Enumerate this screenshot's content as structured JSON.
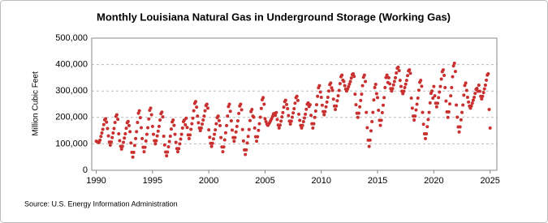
{
  "chart_data": {
    "type": "scatter",
    "title": "Monthly Louisiana Natural Gas in Underground Storage (Working Gas)",
    "y_label": "Million Cubic Feet",
    "source": "Source: U.S. Energy Information Administration",
    "color": "#c8312f",
    "grid": true,
    "xlim": [
      1989.6,
      2025.6
    ],
    "xticks": [
      1990,
      1995,
      2000,
      2005,
      2010,
      2015,
      2020,
      2025
    ],
    "ylim": [
      0,
      500000
    ],
    "yticks": [
      {
        "value": 0,
        "label": "0"
      },
      {
        "value": 100000,
        "label": "100,000"
      },
      {
        "value": 200000,
        "label": "200,000"
      },
      {
        "value": 300000,
        "label": "300,000"
      },
      {
        "value": 400000,
        "label": "400,000"
      },
      {
        "value": 500000,
        "label": "500,000"
      }
    ],
    "x": [
      1990,
      1990.083,
      1990.167,
      1990.25,
      1990.333,
      1990.417,
      1990.5,
      1990.583,
      1990.667,
      1990.75,
      1990.833,
      1990.917,
      1991,
      1991.083,
      1991.167,
      1991.25,
      1991.333,
      1991.417,
      1991.5,
      1991.583,
      1991.667,
      1991.75,
      1991.833,
      1991.917,
      1992,
      1992.083,
      1992.167,
      1992.25,
      1992.333,
      1992.417,
      1992.5,
      1992.583,
      1992.667,
      1992.75,
      1992.833,
      1992.917,
      1993,
      1993.083,
      1993.167,
      1993.25,
      1993.333,
      1993.417,
      1993.5,
      1993.583,
      1993.667,
      1993.75,
      1993.833,
      1993.917,
      1994,
      1994.083,
      1994.167,
      1994.25,
      1994.333,
      1994.417,
      1994.5,
      1994.583,
      1994.667,
      1994.75,
      1994.833,
      1994.917,
      1995,
      1995.083,
      1995.167,
      1995.25,
      1995.333,
      1995.417,
      1995.5,
      1995.583,
      1995.667,
      1995.75,
      1995.833,
      1995.917,
      1996,
      1996.083,
      1996.167,
      1996.25,
      1996.333,
      1996.417,
      1996.5,
      1996.583,
      1996.667,
      1996.75,
      1996.833,
      1996.917,
      1997,
      1997.083,
      1997.167,
      1997.25,
      1997.333,
      1997.417,
      1997.5,
      1997.583,
      1997.667,
      1997.75,
      1997.833,
      1997.917,
      1998,
      1998.083,
      1998.167,
      1998.25,
      1998.333,
      1998.417,
      1998.5,
      1998.583,
      1998.667,
      1998.75,
      1998.833,
      1998.917,
      1999,
      1999.083,
      1999.167,
      1999.25,
      1999.333,
      1999.417,
      1999.5,
      1999.583,
      1999.667,
      1999.75,
      1999.833,
      1999.917,
      2000,
      2000.083,
      2000.167,
      2000.25,
      2000.333,
      2000.417,
      2000.5,
      2000.583,
      2000.667,
      2000.75,
      2000.833,
      2000.917,
      2001,
      2001.083,
      2001.167,
      2001.25,
      2001.333,
      2001.417,
      2001.5,
      2001.583,
      2001.667,
      2001.75,
      2001.833,
      2001.917,
      2002,
      2002.083,
      2002.167,
      2002.25,
      2002.333,
      2002.417,
      2002.5,
      2002.583,
      2002.667,
      2002.75,
      2002.833,
      2002.917,
      2003,
      2003.083,
      2003.167,
      2003.25,
      2003.333,
      2003.417,
      2003.5,
      2003.583,
      2003.667,
      2003.75,
      2003.833,
      2003.917,
      2004,
      2004.083,
      2004.167,
      2004.25,
      2004.333,
      2004.417,
      2004.5,
      2004.583,
      2004.667,
      2004.75,
      2004.833,
      2004.917,
      2005,
      2005.083,
      2005.167,
      2005.25,
      2005.333,
      2005.417,
      2005.5,
      2005.583,
      2005.667,
      2005.75,
      2005.833,
      2005.917,
      2006,
      2006.083,
      2006.167,
      2006.25,
      2006.333,
      2006.417,
      2006.5,
      2006.583,
      2006.667,
      2006.75,
      2006.833,
      2006.917,
      2007,
      2007.083,
      2007.167,
      2007.25,
      2007.333,
      2007.417,
      2007.5,
      2007.583,
      2007.667,
      2007.75,
      2007.833,
      2007.917,
      2008,
      2008.083,
      2008.167,
      2008.25,
      2008.333,
      2008.417,
      2008.5,
      2008.583,
      2008.667,
      2008.75,
      2008.833,
      2008.917,
      2009,
      2009.083,
      2009.167,
      2009.25,
      2009.333,
      2009.417,
      2009.5,
      2009.583,
      2009.667,
      2009.75,
      2009.833,
      2009.917,
      2010,
      2010.083,
      2010.167,
      2010.25,
      2010.333,
      2010.417,
      2010.5,
      2010.583,
      2010.667,
      2010.75,
      2010.833,
      2010.917,
      2011,
      2011.083,
      2011.167,
      2011.25,
      2011.333,
      2011.417,
      2011.5,
      2011.583,
      2011.667,
      2011.75,
      2011.833,
      2011.917,
      2012,
      2012.083,
      2012.167,
      2012.25,
      2012.333,
      2012.417,
      2012.5,
      2012.583,
      2012.667,
      2012.75,
      2012.833,
      2012.917,
      2013,
      2013.083,
      2013.167,
      2013.25,
      2013.333,
      2013.417,
      2013.5,
      2013.583,
      2013.667,
      2013.75,
      2013.833,
      2013.917,
      2014,
      2014.083,
      2014.167,
      2014.25,
      2014.333,
      2014.417,
      2014.5,
      2014.583,
      2014.667,
      2014.75,
      2014.833,
      2014.917,
      2015,
      2015.083,
      2015.167,
      2015.25,
      2015.333,
      2015.417,
      2015.5,
      2015.583,
      2015.667,
      2015.75,
      2015.833,
      2015.917,
      2016,
      2016.083,
      2016.167,
      2016.25,
      2016.333,
      2016.417,
      2016.5,
      2016.583,
      2016.667,
      2016.75,
      2016.833,
      2016.917,
      2017,
      2017.083,
      2017.167,
      2017.25,
      2017.333,
      2017.417,
      2017.5,
      2017.583,
      2017.667,
      2017.75,
      2017.833,
      2017.917,
      2018,
      2018.083,
      2018.167,
      2018.25,
      2018.333,
      2018.417,
      2018.5,
      2018.583,
      2018.667,
      2018.75,
      2018.833,
      2018.917,
      2019,
      2019.083,
      2019.167,
      2019.25,
      2019.333,
      2019.417,
      2019.5,
      2019.583,
      2019.667,
      2019.75,
      2019.833,
      2019.917,
      2020,
      2020.083,
      2020.167,
      2020.25,
      2020.333,
      2020.417,
      2020.5,
      2020.583,
      2020.667,
      2020.75,
      2020.833,
      2020.917,
      2021,
      2021.083,
      2021.167,
      2021.25,
      2021.333,
      2021.417,
      2021.5,
      2021.583,
      2021.667,
      2021.75,
      2021.833,
      2021.917,
      2022,
      2022.083,
      2022.167,
      2022.25,
      2022.333,
      2022.417,
      2022.5,
      2022.583,
      2022.667,
      2022.75,
      2022.833,
      2022.917,
      2023,
      2023.083,
      2023.167,
      2023.25,
      2023.333,
      2023.417,
      2023.5,
      2023.583,
      2023.667,
      2023.75,
      2023.833,
      2023.917,
      2024,
      2024.083,
      2024.167,
      2024.25,
      2024.333,
      2024.417,
      2024.5,
      2024.583,
      2024.667,
      2024.75,
      2024.833,
      2024.917,
      2025
    ],
    "values": [
      110000,
      108000,
      106000,
      105000,
      114000,
      128000,
      141000,
      155000,
      173000,
      191000,
      195000,
      182000,
      158000,
      130000,
      107000,
      95000,
      107000,
      124000,
      141000,
      158000,
      181000,
      204000,
      210000,
      193000,
      138000,
      112000,
      91000,
      80000,
      91000,
      106000,
      122000,
      138000,
      159000,
      180000,
      185000,
      169000,
      146000,
      103000,
      68000,
      50000,
      68000,
      94000,
      120000,
      146000,
      181000,
      216000,
      225000,
      199000,
      161000,
      120000,
      87000,
      70000,
      87000,
      111000,
      136000,
      161000,
      194000,
      227000,
      235000,
      210000,
      166000,
      136000,
      112000,
      100000,
      112000,
      130000,
      148000,
      166000,
      190000,
      214000,
      220000,
      202000,
      129000,
      96000,
      69000,
      55000,
      69000,
      89000,
      109000,
      129000,
      156000,
      183000,
      190000,
      170000,
      136000,
      106000,
      82000,
      70000,
      82000,
      100000,
      118000,
      136000,
      160000,
      184000,
      190000,
      172000,
      197000,
      162000,
      134000,
      120000,
      134000,
      155000,
      176000,
      197000,
      225000,
      253000,
      260000,
      239000,
      205000,
      180000,
      160000,
      150000,
      160000,
      175000,
      190000,
      205000,
      225000,
      245000,
      250000,
      235000,
      153000,
      125000,
      102000,
      90000,
      102000,
      119000,
      136000,
      153000,
      176000,
      199000,
      205000,
      188000,
      169000,
      124000,
      88000,
      70000,
      88000,
      115000,
      142000,
      169000,
      205000,
      241000,
      250000,
      223000,
      187000,
      152000,
      124000,
      110000,
      124000,
      145000,
      166000,
      187000,
      215000,
      243000,
      250000,
      229000,
      154000,
      111000,
      77000,
      60000,
      77000,
      103000,
      128000,
      154000,
      188000,
      222000,
      230000,
      205000,
      201000,
      160000,
      127000,
      110000,
      127000,
      151000,
      176000,
      201000,
      234000,
      267000,
      275000,
      250000,
      195000,
      184000,
      175000,
      170000,
      175000,
      181000,
      188000,
      195000,
      204000,
      213000,
      215000,
      208000,
      218000,
      192000,
      171000,
      160000,
      171000,
      186000,
      202000,
      218000,
      239000,
      260000,
      265000,
      249000,
      233000,
      207000,
      186000,
      175000,
      186000,
      201000,
      217000,
      233000,
      254000,
      275000,
      280000,
      264000,
      212000,
      189000,
      170000,
      160000,
      170000,
      184000,
      198000,
      212000,
      231000,
      250000,
      255000,
      241000,
      248000,
      208000,
      176000,
      160000,
      176000,
      200000,
      224000,
      248000,
      280000,
      312000,
      320000,
      296000,
      276000,
      246000,
      222000,
      210000,
      222000,
      240000,
      258000,
      276000,
      300000,
      324000,
      330000,
      312000,
      302000,
      269000,
      243000,
      230000,
      243000,
      263000,
      282000,
      302000,
      328000,
      354000,
      360000,
      341000,
      336000,
      320000,
      307000,
      300000,
      307000,
      316000,
      326000,
      336000,
      349000,
      362000,
      365000,
      355000,
      288000,
      248000,
      216000,
      200000,
      216000,
      240000,
      264000,
      288000,
      320000,
      352000,
      360000,
      336000,
      219000,
      161000,
      114000,
      90000,
      114000,
      149000,
      184000,
      219000,
      266000,
      313000,
      325000,
      290000,
      275000,
      227000,
      189000,
      170000,
      189000,
      218000,
      246000,
      275000,
      313000,
      351000,
      360000,
      332000,
      350000,
      327000,
      309000,
      300000,
      309000,
      323000,
      336000,
      350000,
      368000,
      386000,
      390000,
      377000,
      340000,
      317000,
      299000,
      290000,
      299000,
      313000,
      326000,
      340000,
      358000,
      376000,
      380000,
      367000,
      273000,
      235000,
      205000,
      190000,
      205000,
      228000,
      250000,
      273000,
      303000,
      333000,
      340000,
      318000,
      219000,
      174000,
      138000,
      120000,
      138000,
      165000,
      192000,
      219000,
      255000,
      291000,
      300000,
      273000,
      317000,
      282000,
      254000,
      240000,
      254000,
      275000,
      296000,
      317000,
      345000,
      373000,
      380000,
      359000,
      313000,
      262000,
      221000,
      200000,
      221000,
      251000,
      282000,
      313000,
      354000,
      395000,
      405000,
      374000,
      247000,
      201000,
      164000,
      145000,
      164000,
      191000,
      219000,
      247000,
      284000,
      321000,
      330000,
      302000,
      276000,
      258000,
      243000,
      235000,
      243000,
      254000,
      265000,
      276000,
      291000,
      306000,
      310000,
      299000,
      322000,
      299000,
      280000,
      270000,
      280000,
      294000,
      308000,
      322000,
      341000,
      360000,
      365000,
      230000,
      160000
    ]
  }
}
